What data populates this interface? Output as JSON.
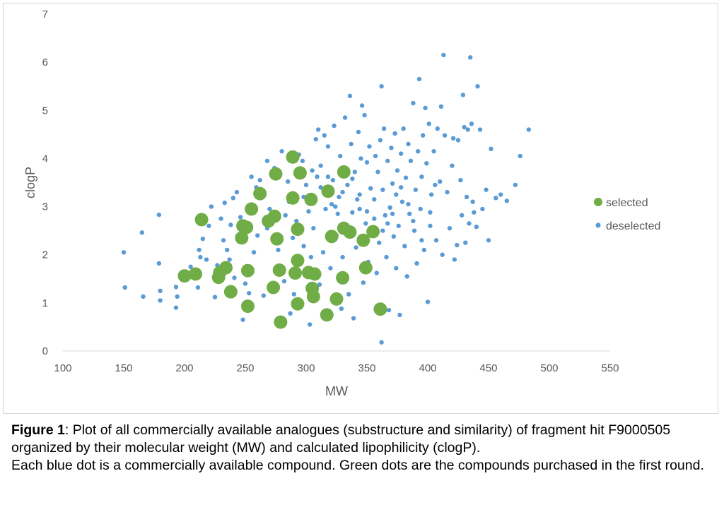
{
  "chart_data": {
    "type": "scatter",
    "title": "",
    "xlabel": "MW",
    "ylabel": "clogP",
    "xlim": [
      100,
      550
    ],
    "ylim": [
      0,
      7
    ],
    "x_ticks": [
      "100",
      "150",
      "200",
      "250",
      "300",
      "350",
      "400",
      "450",
      "500",
      "550"
    ],
    "y_ticks": [
      "0",
      "1",
      "2",
      "3",
      "4",
      "5",
      "6",
      "7"
    ],
    "grid": false,
    "legend_position": "right",
    "series": [
      {
        "name": "selected",
        "color": "#70ad47",
        "points": [
          [
            200,
            1.56
          ],
          [
            209,
            1.6
          ],
          [
            214,
            2.73
          ],
          [
            228,
            1.53
          ],
          [
            229,
            1.63
          ],
          [
            234,
            1.73
          ],
          [
            238,
            1.23
          ],
          [
            247,
            2.35
          ],
          [
            248,
            2.6
          ],
          [
            251,
            2.57
          ],
          [
            252,
            1.67
          ],
          [
            252,
            0.93
          ],
          [
            255,
            2.95
          ],
          [
            262,
            3.27
          ],
          [
            269,
            2.7
          ],
          [
            273,
            1.32
          ],
          [
            274,
            2.8
          ],
          [
            275,
            3.68
          ],
          [
            276,
            2.33
          ],
          [
            278,
            1.68
          ],
          [
            279,
            0.6
          ],
          [
            289,
            3.18
          ],
          [
            289,
            4.03
          ],
          [
            291,
            1.62
          ],
          [
            293,
            2.53
          ],
          [
            293,
            1.88
          ],
          [
            293,
            0.98
          ],
          [
            295,
            3.7
          ],
          [
            302,
            1.63
          ],
          [
            304,
            3.15
          ],
          [
            305,
            1.3
          ],
          [
            306,
            1.13
          ],
          [
            307,
            1.6
          ],
          [
            317,
            0.75
          ],
          [
            318,
            3.32
          ],
          [
            321,
            2.38
          ],
          [
            325,
            1.08
          ],
          [
            330,
            1.52
          ],
          [
            331,
            3.72
          ],
          [
            331,
            2.55
          ],
          [
            336,
            2.47
          ],
          [
            347,
            2.3
          ],
          [
            349,
            1.73
          ],
          [
            355,
            2.48
          ],
          [
            361,
            0.87
          ]
        ]
      },
      {
        "name": "deselected",
        "color": "#5b9bd5",
        "points": [
          [
            150,
            2.05
          ],
          [
            151,
            1.32
          ],
          [
            165,
            2.46
          ],
          [
            166,
            1.13
          ],
          [
            179,
            2.83
          ],
          [
            179,
            1.82
          ],
          [
            180,
            1.05
          ],
          [
            180,
            1.25
          ],
          [
            193,
            1.33
          ],
          [
            193,
            0.9
          ],
          [
            194,
            1.13
          ],
          [
            197,
            1.62
          ],
          [
            205,
            1.75
          ],
          [
            210,
            1.55
          ],
          [
            211,
            1.32
          ],
          [
            212,
            2.1
          ],
          [
            213,
            1.95
          ],
          [
            215,
            2.33
          ],
          [
            218,
            1.9
          ],
          [
            220,
            2.6
          ],
          [
            222,
            3.0
          ],
          [
            225,
            1.12
          ],
          [
            225,
            1.48
          ],
          [
            227,
            1.78
          ],
          [
            230,
            2.75
          ],
          [
            232,
            2.3
          ],
          [
            233,
            3.08
          ],
          [
            235,
            2.1
          ],
          [
            237,
            1.9
          ],
          [
            238,
            2.62
          ],
          [
            240,
            3.18
          ],
          [
            241,
            1.52
          ],
          [
            243,
            3.3
          ],
          [
            246,
            2.78
          ],
          [
            248,
            0.65
          ],
          [
            250,
            1.4
          ],
          [
            253,
            1.2
          ],
          [
            255,
            3.62
          ],
          [
            257,
            2.05
          ],
          [
            259,
            3.4
          ],
          [
            262,
            3.55
          ],
          [
            265,
            1.15
          ],
          [
            268,
            3.95
          ],
          [
            270,
            2.95
          ],
          [
            272,
            1.25
          ],
          [
            274,
            3.8
          ],
          [
            277,
            2.1
          ],
          [
            280,
            4.15
          ],
          [
            282,
            1.45
          ],
          [
            283,
            2.82
          ],
          [
            285,
            3.52
          ],
          [
            287,
            0.78
          ],
          [
            289,
            2.35
          ],
          [
            290,
            1.18
          ],
          [
            292,
            2.7
          ],
          [
            294,
            4.08
          ],
          [
            297,
            3.95
          ],
          [
            298,
            2.18
          ],
          [
            300,
            3.45
          ],
          [
            302,
            2.9
          ],
          [
            303,
            0.55
          ],
          [
            304,
            1.95
          ],
          [
            306,
            2.55
          ],
          [
            308,
            4.4
          ],
          [
            309,
            3.62
          ],
          [
            310,
            4.6
          ],
          [
            311,
            1.38
          ],
          [
            312,
            3.85
          ],
          [
            314,
            2.05
          ],
          [
            315,
            4.48
          ],
          [
            316,
            2.95
          ],
          [
            318,
            4.25
          ],
          [
            320,
            1.72
          ],
          [
            321,
            3.05
          ],
          [
            322,
            3.55
          ],
          [
            323,
            4.68
          ],
          [
            325,
            2.4
          ],
          [
            327,
            3.2
          ],
          [
            328,
            4.05
          ],
          [
            329,
            0.88
          ],
          [
            330,
            1.95
          ],
          [
            332,
            4.85
          ],
          [
            333,
            2.62
          ],
          [
            334,
            3.45
          ],
          [
            335,
            1.18
          ],
          [
            336,
            5.3
          ],
          [
            337,
            4.3
          ],
          [
            338,
            2.88
          ],
          [
            339,
            0.68
          ],
          [
            340,
            3.72
          ],
          [
            341,
            2.15
          ],
          [
            342,
            3.15
          ],
          [
            343,
            4.55
          ],
          [
            344,
            2.95
          ],
          [
            345,
            4.0
          ],
          [
            346,
            5.1
          ],
          [
            347,
            1.42
          ],
          [
            348,
            4.9
          ],
          [
            349,
            2.65
          ],
          [
            350,
            3.92
          ],
          [
            351,
            1.85
          ],
          [
            352,
            4.25
          ],
          [
            353,
            3.38
          ],
          [
            354,
            2.45
          ],
          [
            356,
            3.15
          ],
          [
            357,
            4.05
          ],
          [
            358,
            1.62
          ],
          [
            359,
            3.72
          ],
          [
            360,
            2.25
          ],
          [
            361,
            4.38
          ],
          [
            362,
            5.5
          ],
          [
            362,
            0.18
          ],
          [
            363,
            3.35
          ],
          [
            364,
            4.62
          ],
          [
            365,
            2.82
          ],
          [
            366,
            1.95
          ],
          [
            367,
            3.95
          ],
          [
            368,
            0.85
          ],
          [
            369,
            2.98
          ],
          [
            370,
            4.22
          ],
          [
            371,
            3.48
          ],
          [
            372,
            2.38
          ],
          [
            373,
            4.52
          ],
          [
            374,
            1.72
          ],
          [
            375,
            3.75
          ],
          [
            376,
            2.6
          ],
          [
            377,
            0.75
          ],
          [
            378,
            4.1
          ],
          [
            379,
            3.1
          ],
          [
            380,
            4.62
          ],
          [
            381,
            2.18
          ],
          [
            382,
            3.6
          ],
          [
            383,
            1.55
          ],
          [
            384,
            4.3
          ],
          [
            385,
            2.85
          ],
          [
            386,
            3.95
          ],
          [
            388,
            5.15
          ],
          [
            389,
            2.5
          ],
          [
            390,
            3.35
          ],
          [
            391,
            1.82
          ],
          [
            392,
            4.15
          ],
          [
            393,
            5.65
          ],
          [
            394,
            2.95
          ],
          [
            395,
            3.62
          ],
          [
            396,
            4.48
          ],
          [
            397,
            2.1
          ],
          [
            398,
            5.05
          ],
          [
            399,
            3.9
          ],
          [
            400,
            1.02
          ],
          [
            401,
            4.72
          ],
          [
            402,
            2.6
          ],
          [
            403,
            3.25
          ],
          [
            405,
            4.15
          ],
          [
            407,
            2.3
          ],
          [
            408,
            4.62
          ],
          [
            410,
            3.52
          ],
          [
            411,
            5.08
          ],
          [
            412,
            2.0
          ],
          [
            413,
            6.15
          ],
          [
            414,
            4.48
          ],
          [
            416,
            3.3
          ],
          [
            418,
            2.55
          ],
          [
            420,
            3.85
          ],
          [
            421,
            4.42
          ],
          [
            422,
            1.9
          ],
          [
            424,
            2.2
          ],
          [
            425,
            4.38
          ],
          [
            427,
            3.55
          ],
          [
            428,
            2.82
          ],
          [
            429,
            5.32
          ],
          [
            430,
            4.65
          ],
          [
            431,
            2.25
          ],
          [
            432,
            3.2
          ],
          [
            433,
            4.6
          ],
          [
            434,
            2.65
          ],
          [
            435,
            6.1
          ],
          [
            436,
            4.72
          ],
          [
            437,
            3.1
          ],
          [
            438,
            2.88
          ],
          [
            440,
            2.58
          ],
          [
            441,
            5.5
          ],
          [
            443,
            4.6
          ],
          [
            445,
            2.95
          ],
          [
            448,
            3.35
          ],
          [
            450,
            2.3
          ],
          [
            452,
            4.2
          ],
          [
            456,
            3.18
          ],
          [
            460,
            3.25
          ],
          [
            465,
            3.12
          ],
          [
            472,
            3.45
          ],
          [
            476,
            4.05
          ],
          [
            483,
            4.6
          ],
          [
            260,
            2.4
          ],
          [
            268,
            2.55
          ],
          [
            286,
            3.1
          ],
          [
            298,
            3.2
          ],
          [
            305,
            3.75
          ],
          [
            312,
            3.4
          ],
          [
            318,
            3.62
          ],
          [
            324,
            3.0
          ],
          [
            326,
            2.85
          ],
          [
            330,
            3.3
          ],
          [
            338,
            3.58
          ],
          [
            344,
            3.25
          ],
          [
            350,
            2.9
          ],
          [
            356,
            2.75
          ],
          [
            363,
            2.5
          ],
          [
            367,
            2.65
          ],
          [
            371,
            2.85
          ],
          [
            374,
            3.25
          ],
          [
            378,
            3.4
          ],
          [
            384,
            3.05
          ],
          [
            388,
            2.7
          ],
          [
            395,
            2.3
          ],
          [
            402,
            2.88
          ],
          [
            406,
            3.45
          ]
        ]
      }
    ]
  },
  "caption": {
    "figure_label": "Figure 1",
    "line1": ": Plot of all commercially available analogues (substructure and similarity) of fragment hit F9000505 organized by their molecular weight (MW) and calculated lipophilicity (clogP).",
    "line2": "Each blue dot is a commercially available compound. Green dots are the compounds purchased in the first round."
  }
}
